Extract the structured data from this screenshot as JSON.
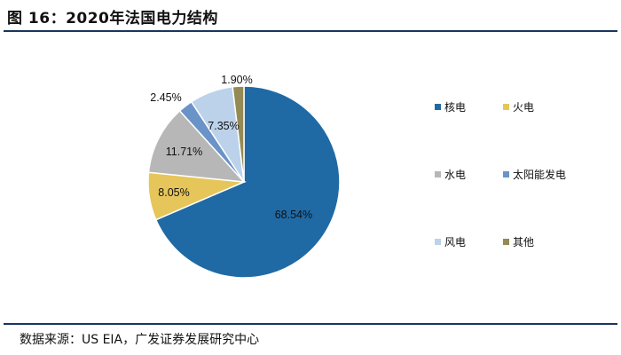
{
  "header": {
    "title": "图 16：2020年法国电力结构"
  },
  "footer": {
    "source": "数据来源：US EIA，广发证券发展研究中心"
  },
  "chart_data": {
    "type": "pie",
    "title": "",
    "slices": [
      {
        "name": "核电",
        "value": 68.54,
        "label": "68.54%",
        "color": "#1f6aa5"
      },
      {
        "name": "火电",
        "value": 8.05,
        "label": "8.05%",
        "color": "#e6c65a"
      },
      {
        "name": "水电",
        "value": 11.71,
        "label": "11.71%",
        "color": "#b7b7b7"
      },
      {
        "name": "太阳能发电",
        "value": 2.45,
        "label": "2.45%",
        "color": "#6a93c7"
      },
      {
        "name": "风电",
        "value": 7.35,
        "label": "7.35%",
        "color": "#bcd2ea"
      },
      {
        "name": "其他",
        "value": 1.9,
        "label": "1.90%",
        "color": "#948a54"
      }
    ],
    "legend_order": [
      "核电",
      "火电",
      "水电",
      "太阳能发电",
      "风电",
      "其他"
    ],
    "legend_placement": "right"
  }
}
